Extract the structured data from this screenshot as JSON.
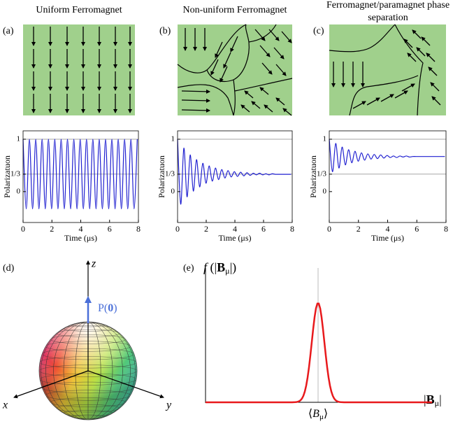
{
  "chart_data": [
    {
      "type": "line",
      "panel": "(a)",
      "title": "Uniform Ferromagnet",
      "xlabel": "Time (μs)",
      "ylabel": "Polarizatuon",
      "x": [
        0,
        0.22,
        0.44,
        0.66,
        0.88,
        1.1,
        1.32,
        1.54,
        1.76,
        1.98,
        2.2,
        2.42,
        2.64,
        2.86,
        3.08,
        3.3,
        3.52,
        3.74,
        3.96,
        4.18,
        4.4,
        4.62,
        4.84,
        5.06,
        5.28,
        5.5,
        5.72,
        5.94,
        6.16,
        6.38,
        6.6,
        6.82,
        7.04,
        7.26,
        7.48,
        7.7,
        7.92
      ],
      "series": [
        {
          "color": "#1f1fd0",
          "values": [
            1,
            -0.33,
            1,
            -0.33,
            1,
            -0.33,
            1,
            -0.33,
            1,
            -0.33,
            1,
            -0.33,
            1,
            -0.33,
            1,
            -0.33,
            1,
            -0.33,
            1,
            -0.33,
            1,
            -0.33,
            1,
            -0.33,
            1,
            -0.33,
            1,
            -0.33,
            1,
            -0.33,
            1,
            -0.33,
            1,
            -0.33,
            1,
            -0.33,
            1
          ]
        }
      ],
      "xlim": [
        0,
        8
      ],
      "xticks": [
        0,
        2,
        4,
        6,
        8
      ],
      "ylim": [
        -0.59,
        1.16
      ],
      "yticks": [
        0,
        {
          "value": 0.333,
          "label": "1/3"
        },
        1
      ],
      "reference_lines": [
        1,
        0.333
      ]
    },
    {
      "type": "line",
      "panel": "(b)",
      "title": "Non-uniform Ferromagnet",
      "xlabel": "Time (μs)",
      "ylabel": "Polarizatuon",
      "x": [
        0,
        0.22,
        0.44,
        0.66,
        0.88,
        1.1,
        1.32,
        1.54,
        1.76,
        1.98,
        2.2,
        2.42,
        2.64,
        2.86,
        3.08,
        3.3,
        3.52,
        3.74,
        3.96,
        4.18,
        4.4,
        4.62,
        4.84,
        5.06,
        5.28,
        5.5,
        5.72,
        5.94,
        6.16,
        6.38,
        6.6,
        6.82,
        7.04,
        7.26,
        7.48,
        7.7,
        7.92
      ],
      "series": [
        {
          "color": "#1f1fd0",
          "values": [
            1,
            -0.24,
            0.83,
            -0.1,
            0.7,
            0.01,
            0.61,
            0.09,
            0.54,
            0.16,
            0.49,
            0.2,
            0.45,
            0.23,
            0.42,
            0.26,
            0.4,
            0.28,
            0.38,
            0.29,
            0.37,
            0.3,
            0.36,
            0.31,
            0.35,
            0.32,
            0.35,
            0.32,
            0.34,
            0.32,
            0.34,
            0.33,
            0.33,
            0.33,
            0.33,
            0.33,
            0.33
          ]
        }
      ],
      "xlim": [
        0,
        8
      ],
      "xticks": [
        0,
        2,
        4,
        6,
        8
      ],
      "ylim": [
        -0.59,
        1.16
      ],
      "yticks": [
        0,
        {
          "value": 0.333,
          "label": "1/3"
        },
        1
      ],
      "reference_lines": [
        1,
        0.333
      ]
    },
    {
      "type": "line",
      "panel": "(c)",
      "title": "Ferromagnet/paramagnet phase separation",
      "xlabel": "Time (μs)",
      "ylabel": "Polarizatuon",
      "x": [
        0,
        0.22,
        0.44,
        0.66,
        0.88,
        1.1,
        1.32,
        1.54,
        1.76,
        1.98,
        2.2,
        2.42,
        2.64,
        2.86,
        3.08,
        3.3,
        3.52,
        3.74,
        3.96,
        4.18,
        4.4,
        4.62,
        4.84,
        5.06,
        5.28,
        5.5,
        5.72,
        5.94,
        6.16,
        6.38,
        6.6,
        6.82,
        7.04,
        7.26,
        7.48,
        7.7,
        7.92
      ],
      "series": [
        {
          "color": "#1f1fd0",
          "values": [
            1,
            0.38,
            0.92,
            0.45,
            0.85,
            0.51,
            0.8,
            0.55,
            0.77,
            0.58,
            0.74,
            0.6,
            0.72,
            0.62,
            0.71,
            0.63,
            0.7,
            0.64,
            0.69,
            0.65,
            0.68,
            0.65,
            0.68,
            0.66,
            0.68,
            0.66,
            0.67,
            0.67,
            0.67,
            0.67,
            0.67,
            0.67,
            0.67,
            0.67,
            0.67,
            0.67,
            0.67
          ]
        }
      ],
      "xlim": [
        0,
        8
      ],
      "xticks": [
        0,
        2,
        4,
        6,
        8
      ],
      "ylim": [
        -0.59,
        1.16
      ],
      "yticks": [
        0,
        {
          "value": 0.333,
          "label": "1/3"
        },
        1
      ],
      "reference_lines": [
        1,
        0.333
      ]
    }
  ],
  "figure": {
    "sphere": {
      "panel": "(d)",
      "z": "z",
      "x": "x",
      "y": "y",
      "p_open": "P(",
      "p_zero": "0",
      "p_close": ")"
    },
    "distribution": {
      "panel": "(e)",
      "ylabel": {
        "f": "f",
        "open": " (|",
        "B": "B",
        "mu": "μ",
        "close": "|)"
      },
      "xlabel": {
        "open": "|",
        "B": "B",
        "mu": "μ",
        "close": "|"
      },
      "mean": {
        "open": "⟨",
        "B": "B",
        "mu": "μ",
        "close": "⟩"
      }
    }
  }
}
